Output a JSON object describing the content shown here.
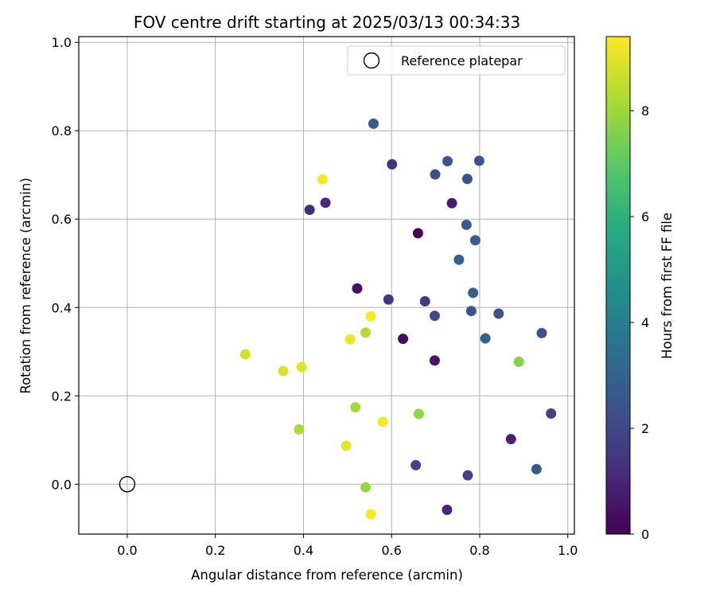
{
  "chart_data": {
    "type": "scatter",
    "title": "FOV centre drift starting at 2025/03/13 00:34:33",
    "xlabel": "Angular distance from reference (arcmin)",
    "ylabel": "Rotation from reference (arcmin)",
    "xlim": [
      -0.11,
      1.015
    ],
    "ylim": [
      -0.113,
      1.013
    ],
    "xticks": [
      0.0,
      0.2,
      0.4,
      0.6,
      0.8,
      1.0
    ],
    "yticks": [
      0.0,
      0.2,
      0.4,
      0.6,
      0.8,
      1.0
    ],
    "xtick_labels": [
      "0.0",
      "0.2",
      "0.4",
      "0.6",
      "0.8",
      "1.0"
    ],
    "ytick_labels": [
      "0.0",
      "0.2",
      "0.4",
      "0.6",
      "0.8",
      "1.0"
    ],
    "grid": true,
    "legend": {
      "placement": "top-right",
      "entries": [
        {
          "label": "Reference platepar",
          "marker": "open-circle",
          "x": 0.0,
          "y": 0.0
        }
      ]
    },
    "colorbar": {
      "label": "Hours from first FF file",
      "range": [
        0,
        9.4
      ],
      "ticks": [
        0,
        2,
        4,
        6,
        8
      ],
      "tick_labels": [
        "0",
        "2",
        "4",
        "6",
        "8"
      ],
      "colormap": "viridis"
    },
    "points": [
      {
        "x": 0.66,
        "y": 0.568,
        "hours": 0.1
      },
      {
        "x": 0.626,
        "y": 0.329,
        "hours": 0.25
      },
      {
        "x": 0.522,
        "y": 0.443,
        "hours": 0.4
      },
      {
        "x": 0.698,
        "y": 0.28,
        "hours": 0.55
      },
      {
        "x": 0.737,
        "y": 0.636,
        "hours": 0.7
      },
      {
        "x": 0.871,
        "y": 0.102,
        "hours": 0.9
      },
      {
        "x": 0.726,
        "y": -0.058,
        "hours": 1.0
      },
      {
        "x": 0.45,
        "y": 0.637,
        "hours": 1.1
      },
      {
        "x": 0.414,
        "y": 0.621,
        "hours": 1.2
      },
      {
        "x": 0.601,
        "y": 0.724,
        "hours": 1.3
      },
      {
        "x": 0.593,
        "y": 0.418,
        "hours": 1.5
      },
      {
        "x": 0.676,
        "y": 0.414,
        "hours": 1.65
      },
      {
        "x": 0.962,
        "y": 0.16,
        "hours": 1.8
      },
      {
        "x": 0.773,
        "y": 0.02,
        "hours": 1.9
      },
      {
        "x": 0.655,
        "y": 0.043,
        "hours": 2.0
      },
      {
        "x": 0.698,
        "y": 0.381,
        "hours": 2.1
      },
      {
        "x": 0.699,
        "y": 0.701,
        "hours": 2.2
      },
      {
        "x": 0.843,
        "y": 0.386,
        "hours": 2.3
      },
      {
        "x": 0.941,
        "y": 0.342,
        "hours": 2.35
      },
      {
        "x": 0.781,
        "y": 0.392,
        "hours": 2.4
      },
      {
        "x": 0.727,
        "y": 0.731,
        "hours": 2.45
      },
      {
        "x": 0.772,
        "y": 0.691,
        "hours": 2.5
      },
      {
        "x": 0.799,
        "y": 0.732,
        "hours": 2.55
      },
      {
        "x": 0.559,
        "y": 0.816,
        "hours": 2.6
      },
      {
        "x": 0.929,
        "y": 0.034,
        "hours": 2.65
      },
      {
        "x": 0.77,
        "y": 0.587,
        "hours": 2.7
      },
      {
        "x": 0.79,
        "y": 0.552,
        "hours": 2.75
      },
      {
        "x": 0.753,
        "y": 0.508,
        "hours": 2.85
      },
      {
        "x": 0.785,
        "y": 0.433,
        "hours": 2.9
      },
      {
        "x": 0.813,
        "y": 0.33,
        "hours": 3.0
      },
      {
        "x": 0.889,
        "y": 0.277,
        "hours": 7.6
      },
      {
        "x": 0.662,
        "y": 0.159,
        "hours": 7.8
      },
      {
        "x": 0.541,
        "y": -0.007,
        "hours": 7.9
      },
      {
        "x": 0.518,
        "y": 0.174,
        "hours": 8.1
      },
      {
        "x": 0.39,
        "y": 0.124,
        "hours": 8.2
      },
      {
        "x": 0.541,
        "y": 0.343,
        "hours": 8.3
      },
      {
        "x": 0.268,
        "y": 0.294,
        "hours": 8.8
      },
      {
        "x": 0.354,
        "y": 0.256,
        "hours": 8.9
      },
      {
        "x": 0.396,
        "y": 0.265,
        "hours": 9.0
      },
      {
        "x": 0.497,
        "y": 0.087,
        "hours": 9.1
      },
      {
        "x": 0.506,
        "y": 0.328,
        "hours": 9.2
      },
      {
        "x": 0.58,
        "y": 0.141,
        "hours": 9.3
      },
      {
        "x": 0.553,
        "y": 0.38,
        "hours": 9.35
      },
      {
        "x": 0.443,
        "y": 0.69,
        "hours": 9.4
      },
      {
        "x": 0.553,
        "y": -0.068,
        "hours": 9.4
      }
    ]
  }
}
